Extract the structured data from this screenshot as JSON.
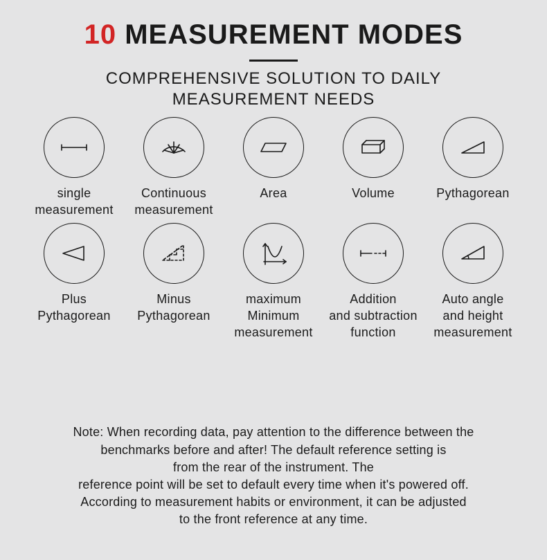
{
  "page": {
    "background_color": "#e4e4e5",
    "noise": false
  },
  "title": {
    "accent_text": "10",
    "rest_text": " MEASUREMENT MODES",
    "accent_color": "#d22525",
    "rest_color": "#1a1a1a",
    "fontsize": 40,
    "rule_color": "#1a1a1a",
    "rule_width": 70,
    "rule_thickness": 3
  },
  "subtitle": {
    "text": "COMPREHENSIVE SOLUTION TO DAILY MEASUREMENT NEEDS",
    "color": "#1a1a1a",
    "fontsize": 24
  },
  "icon_style": {
    "circle_diameter": 88,
    "circle_border_color": "#1a1a1a",
    "circle_border_width": 1.5,
    "stroke_color": "#1a1a1a",
    "stroke_width": 1.6,
    "label_color": "#1a1a1a",
    "label_fontsize": 18
  },
  "modes": [
    {
      "id": "single",
      "label": "single\nmeasurement"
    },
    {
      "id": "continuous",
      "label": "Continuous\nmeasurement"
    },
    {
      "id": "area",
      "label": "Area"
    },
    {
      "id": "volume",
      "label": "Volume"
    },
    {
      "id": "pythag",
      "label": "Pythagorean"
    },
    {
      "id": "plus-pythag",
      "label": "Plus Pythagorean"
    },
    {
      "id": "minus-pythag",
      "label": "Minus\nPythagorean"
    },
    {
      "id": "maxmin",
      "label": "maximum\nMinimum\nmeasurement"
    },
    {
      "id": "addsub",
      "label": "Addition\nand subtraction\nfunction"
    },
    {
      "id": "autoangle",
      "label": "Auto angle\nand height\nmeasurement"
    }
  ],
  "note": {
    "text": "Note: When recording data, pay attention to the difference between the\nbenchmarks before and after! The default reference setting is\nfrom the rear of the instrument. The\nreference point will be set to default every time when it's powered off.\nAccording to measurement habits or environment, it can be adjusted\nto the front reference at any time.",
    "color": "#1a1a1a",
    "fontsize": 18
  }
}
